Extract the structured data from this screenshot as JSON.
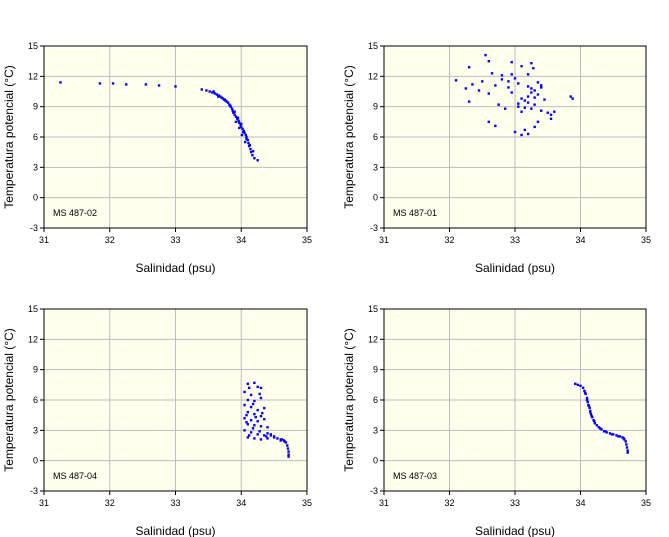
{
  "chart_data": [
    {
      "type": "scatter",
      "station": "MS 487-02",
      "xlabel": "Salinidad (psu)",
      "ylabel": "Temperatura potencial (°C)",
      "xlim": [
        31,
        35
      ],
      "ylim": [
        -3,
        15
      ],
      "xticks": [
        "31",
        "32",
        "33",
        "34",
        "35"
      ],
      "yticks": [
        "-3",
        "0",
        "3",
        "6",
        "9",
        "12",
        "15"
      ],
      "grid": true,
      "marker_color": "#0000ff",
      "background": "#ffffee",
      "points": [
        [
          31.25,
          11.4
        ],
        [
          31.85,
          11.3
        ],
        [
          32.05,
          11.3
        ],
        [
          32.25,
          11.2
        ],
        [
          32.55,
          11.2
        ],
        [
          32.75,
          11.1
        ],
        [
          33.0,
          11.0
        ],
        [
          33.4,
          10.7
        ],
        [
          33.47,
          10.6
        ],
        [
          33.52,
          10.5
        ],
        [
          33.56,
          10.4
        ],
        [
          33.6,
          10.3
        ],
        [
          33.63,
          10.2
        ],
        [
          33.66,
          10.1
        ],
        [
          33.68,
          10.0
        ],
        [
          33.7,
          9.9
        ],
        [
          33.72,
          9.8
        ],
        [
          33.74,
          9.7
        ],
        [
          33.76,
          9.6
        ],
        [
          33.78,
          9.5
        ],
        [
          33.8,
          9.4
        ],
        [
          33.82,
          9.2
        ],
        [
          33.84,
          9.0
        ],
        [
          33.86,
          8.8
        ],
        [
          33.87,
          8.6
        ],
        [
          33.88,
          8.4
        ],
        [
          33.9,
          8.2
        ],
        [
          33.92,
          8.0
        ],
        [
          33.94,
          7.8
        ],
        [
          33.96,
          7.6
        ],
        [
          33.97,
          7.4
        ],
        [
          33.99,
          7.2
        ],
        [
          34.0,
          7.0
        ],
        [
          34.02,
          6.8
        ],
        [
          34.04,
          6.6
        ],
        [
          34.05,
          6.4
        ],
        [
          34.07,
          6.2
        ],
        [
          34.08,
          6.0
        ],
        [
          34.1,
          5.7
        ],
        [
          34.11,
          5.4
        ],
        [
          34.12,
          5.1
        ],
        [
          34.14,
          4.8
        ],
        [
          34.15,
          4.5
        ],
        [
          34.17,
          4.2
        ],
        [
          34.2,
          3.9
        ],
        [
          34.25,
          3.7
        ],
        [
          33.58,
          10.5
        ],
        [
          33.65,
          10.0
        ],
        [
          33.75,
          9.7
        ],
        [
          33.83,
          9.1
        ],
        [
          33.9,
          8.5
        ],
        [
          33.95,
          7.9
        ],
        [
          33.92,
          7.5
        ],
        [
          34.0,
          7.3
        ],
        [
          33.97,
          6.9
        ],
        [
          34.03,
          6.5
        ],
        [
          34.01,
          6.2
        ],
        [
          34.08,
          5.8
        ],
        [
          34.06,
          5.5
        ],
        [
          34.13,
          5.2
        ],
        [
          34.18,
          4.6
        ]
      ]
    },
    {
      "type": "scatter",
      "station": "MS 487-01",
      "xlabel": "Salinidad (psu)",
      "ylabel": "Temperatura potencial (°C)",
      "xlim": [
        31,
        35
      ],
      "ylim": [
        -3,
        15
      ],
      "xticks": [
        "31",
        "32",
        "33",
        "34",
        "35"
      ],
      "yticks": [
        "-3",
        "0",
        "3",
        "6",
        "9",
        "12",
        "15"
      ],
      "grid": true,
      "marker_color": "#0000ff",
      "background": "#ffffee",
      "points": [
        [
          32.55,
          14.1
        ],
        [
          32.6,
          13.5
        ],
        [
          32.95,
          13.4
        ],
        [
          33.25,
          13.3
        ],
        [
          33.1,
          13.0
        ],
        [
          32.3,
          12.9
        ],
        [
          33.28,
          12.8
        ],
        [
          32.65,
          12.3
        ],
        [
          32.95,
          12.2
        ],
        [
          32.8,
          12.1
        ],
        [
          33.2,
          12.2
        ],
        [
          32.8,
          11.7
        ],
        [
          32.1,
          11.6
        ],
        [
          32.5,
          11.5
        ],
        [
          32.9,
          11.5
        ],
        [
          33.05,
          11.3
        ],
        [
          32.35,
          11.2
        ],
        [
          32.7,
          11.1
        ],
        [
          33.35,
          11.4
        ],
        [
          33.4,
          11.1
        ],
        [
          32.25,
          10.8
        ],
        [
          32.45,
          10.6
        ],
        [
          32.6,
          10.3
        ],
        [
          32.95,
          10.4
        ],
        [
          33.25,
          10.8
        ],
        [
          33.3,
          10.6
        ],
        [
          33.35,
          10.2
        ],
        [
          33.2,
          10.0
        ],
        [
          33.1,
          9.8
        ],
        [
          33.3,
          9.9
        ],
        [
          33.15,
          9.6
        ],
        [
          33.2,
          9.4
        ],
        [
          32.3,
          9.5
        ],
        [
          32.75,
          9.2
        ],
        [
          33.05,
          9.0
        ],
        [
          33.15,
          8.9
        ],
        [
          33.25,
          8.8
        ],
        [
          33.1,
          8.5
        ],
        [
          33.4,
          8.6
        ],
        [
          33.5,
          8.4
        ],
        [
          33.55,
          8.2
        ],
        [
          33.6,
          8.5
        ],
        [
          33.55,
          7.8
        ],
        [
          33.35,
          7.5
        ],
        [
          33.3,
          7.0
        ],
        [
          32.7,
          7.1
        ],
        [
          32.6,
          7.5
        ],
        [
          33.0,
          6.5
        ],
        [
          33.15,
          6.7
        ],
        [
          33.2,
          6.3
        ],
        [
          33.1,
          6.2
        ],
        [
          33.85,
          10.0
        ],
        [
          33.88,
          9.8
        ],
        [
          32.85,
          8.8
        ],
        [
          33.05,
          9.3
        ],
        [
          33.3,
          9.2
        ],
        [
          33.45,
          9.7
        ],
        [
          33.25,
          10.4
        ],
        [
          33.4,
          10.9
        ],
        [
          32.9,
          10.9
        ],
        [
          33.2,
          11.0
        ],
        [
          33.0,
          11.8
        ]
      ]
    },
    {
      "type": "scatter",
      "station": "MS 487-04",
      "xlabel": "Salinidad (psu)",
      "ylabel": "Temperatura potencial (°C)",
      "xlim": [
        31,
        35
      ],
      "ylim": [
        -3,
        15
      ],
      "xticks": [
        "31",
        "32",
        "33",
        "34",
        "35"
      ],
      "yticks": [
        "-3",
        "0",
        "3",
        "6",
        "9",
        "12",
        "15"
      ],
      "grid": true,
      "marker_color": "#0000ff",
      "background": "#ffffee",
      "points": [
        [
          34.1,
          7.6
        ],
        [
          34.2,
          7.7
        ],
        [
          34.25,
          7.3
        ],
        [
          34.3,
          7.2
        ],
        [
          34.05,
          6.8
        ],
        [
          34.15,
          6.5
        ],
        [
          34.1,
          6.0
        ],
        [
          34.2,
          5.9
        ],
        [
          34.3,
          6.2
        ],
        [
          34.05,
          5.5
        ],
        [
          34.15,
          5.3
        ],
        [
          34.25,
          5.0
        ],
        [
          34.35,
          5.2
        ],
        [
          34.1,
          4.8
        ],
        [
          34.2,
          4.6
        ],
        [
          34.3,
          4.4
        ],
        [
          34.05,
          4.2
        ],
        [
          34.15,
          4.0
        ],
        [
          34.25,
          3.9
        ],
        [
          34.35,
          4.1
        ],
        [
          34.1,
          3.6
        ],
        [
          34.2,
          3.5
        ],
        [
          34.3,
          3.4
        ],
        [
          34.4,
          3.3
        ],
        [
          34.05,
          3.0
        ],
        [
          34.15,
          2.8
        ],
        [
          34.25,
          2.6
        ],
        [
          34.35,
          2.5
        ],
        [
          34.1,
          2.3
        ],
        [
          34.2,
          2.2
        ],
        [
          34.3,
          2.1
        ],
        [
          34.4,
          2.2
        ],
        [
          34.45,
          2.6
        ],
        [
          34.5,
          2.4
        ],
        [
          34.55,
          2.2
        ],
        [
          34.6,
          2.1
        ],
        [
          34.65,
          2.0
        ],
        [
          34.68,
          1.8
        ],
        [
          34.7,
          1.5
        ],
        [
          34.71,
          1.2
        ],
        [
          34.72,
          0.9
        ],
        [
          34.72,
          0.6
        ],
        [
          34.72,
          0.4
        ],
        [
          34.5,
          2.3
        ],
        [
          34.45,
          2.5
        ],
        [
          34.4,
          2.7
        ],
        [
          34.6,
          2.0
        ],
        [
          34.62,
          2.1
        ],
        [
          34.66,
          1.9
        ],
        [
          34.08,
          3.8
        ],
        [
          34.18,
          3.2
        ],
        [
          34.28,
          2.9
        ],
        [
          34.12,
          2.5
        ],
        [
          34.22,
          4.3
        ],
        [
          34.32,
          4.7
        ],
        [
          34.18,
          5.6
        ],
        [
          34.12,
          7.2
        ],
        [
          34.28,
          6.6
        ],
        [
          34.08,
          4.5
        ],
        [
          34.38,
          2.4
        ]
      ]
    },
    {
      "type": "scatter",
      "station": "MS 487-03",
      "xlabel": "Salinidad (psu)",
      "ylabel": "Temperatura potencial (°C)",
      "xlim": [
        31,
        35
      ],
      "ylim": [
        -3,
        15
      ],
      "xticks": [
        "31",
        "32",
        "33",
        "34",
        "35"
      ],
      "yticks": [
        "-3",
        "0",
        "3",
        "6",
        "9",
        "12",
        "15"
      ],
      "grid": true,
      "marker_color": "#0000ff",
      "background": "#ffffee",
      "points": [
        [
          33.92,
          7.6
        ],
        [
          33.96,
          7.5
        ],
        [
          34.0,
          7.4
        ],
        [
          34.04,
          7.2
        ],
        [
          34.06,
          6.9
        ],
        [
          34.08,
          6.6
        ],
        [
          34.1,
          6.2
        ],
        [
          34.11,
          5.8
        ],
        [
          34.12,
          5.5
        ],
        [
          34.14,
          5.2
        ],
        [
          34.15,
          4.9
        ],
        [
          34.16,
          4.6
        ],
        [
          34.18,
          4.3
        ],
        [
          34.2,
          4.0
        ],
        [
          34.22,
          3.7
        ],
        [
          34.25,
          3.5
        ],
        [
          34.28,
          3.3
        ],
        [
          34.32,
          3.1
        ],
        [
          34.36,
          2.9
        ],
        [
          34.4,
          2.8
        ],
        [
          34.45,
          2.7
        ],
        [
          34.5,
          2.6
        ],
        [
          34.55,
          2.5
        ],
        [
          34.6,
          2.4
        ],
        [
          34.64,
          2.3
        ],
        [
          34.67,
          2.1
        ],
        [
          34.69,
          1.9
        ],
        [
          34.7,
          1.6
        ],
        [
          34.71,
          1.3
        ],
        [
          34.72,
          1.0
        ],
        [
          34.72,
          0.8
        ],
        [
          34.13,
          5.4
        ],
        [
          34.17,
          4.4
        ],
        [
          34.21,
          3.9
        ],
        [
          34.3,
          3.2
        ],
        [
          34.38,
          2.9
        ],
        [
          34.48,
          2.6
        ],
        [
          34.58,
          2.4
        ],
        [
          34.66,
          2.2
        ],
        [
          34.1,
          6.0
        ],
        [
          34.07,
          6.7
        ],
        [
          34.15,
          4.8
        ]
      ]
    }
  ]
}
